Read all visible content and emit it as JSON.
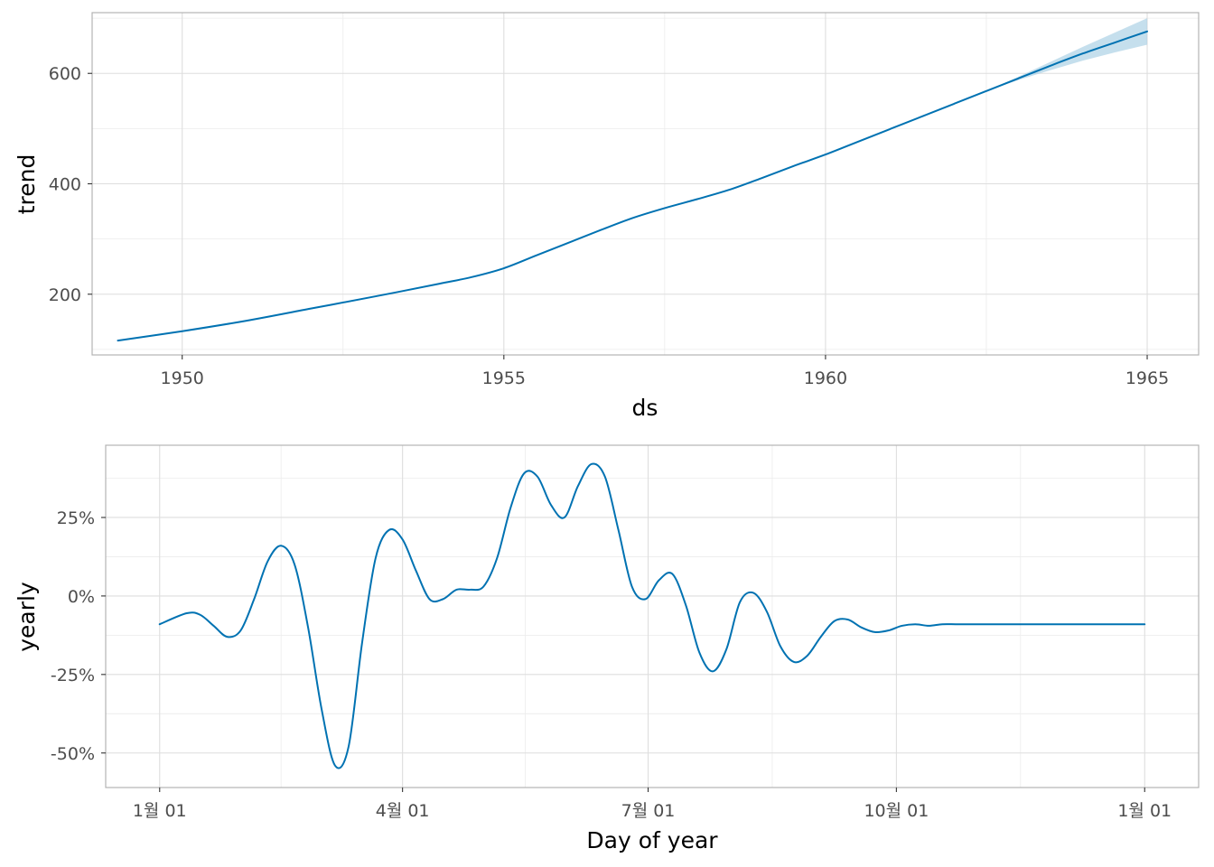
{
  "colors": {
    "line": "#0072B2",
    "band": "#A6CEE3"
  },
  "chart_data": [
    {
      "type": "line",
      "xlabel": "ds",
      "ylabel": "trend",
      "x_type": "year",
      "xlim": [
        1948.6,
        1965.8
      ],
      "ylim": [
        90,
        710
      ],
      "x_ticks": [
        1950,
        1955,
        1960,
        1965
      ],
      "x_tick_labels": [
        "1950",
        "1955",
        "1960",
        "1965"
      ],
      "y_ticks": [
        200,
        400,
        600
      ],
      "y_tick_labels": [
        "200",
        "400",
        "600"
      ],
      "grid": true,
      "series": [
        {
          "x": [
            1949.0,
            1950.0,
            1951.0,
            1952.0,
            1953.0,
            1954.0,
            1954.5,
            1955.0,
            1955.5,
            1956.0,
            1956.5,
            1957.0,
            1957.5,
            1958.0,
            1958.5,
            1959.0,
            1959.5,
            1960.0,
            1960.5,
            1961.0,
            1961.5,
            1962.0,
            1962.5,
            1963.0,
            1963.5,
            1964.0,
            1964.5,
            1965.0
          ],
          "y": [
            116,
            133,
            152,
            174,
            196,
            219,
            231,
            247,
            270,
            293,
            316,
            338,
            356,
            372,
            389,
            410,
            432,
            453,
            476,
            499,
            522,
            545,
            568,
            591,
            614,
            636,
            656,
            676
          ],
          "lower": [
            116,
            133,
            152,
            174,
            196,
            219,
            231,
            247,
            270,
            293,
            316,
            338,
            356,
            372,
            389,
            410,
            432,
            453,
            476,
            499,
            522,
            545,
            568,
            588,
            606,
            623,
            638,
            652
          ],
          "upper": [
            116,
            133,
            152,
            174,
            196,
            219,
            231,
            247,
            270,
            293,
            316,
            338,
            356,
            372,
            389,
            410,
            432,
            453,
            476,
            499,
            522,
            545,
            568,
            594,
            621,
            648,
            674,
            700
          ]
        }
      ]
    },
    {
      "type": "line",
      "xlabel": "Day of year",
      "ylabel": "yearly",
      "x_type": "day_of_year",
      "xlim": [
        -20,
        385
      ],
      "ylim": [
        -0.61,
        0.48
      ],
      "x_ticks": [
        0,
        90,
        181,
        273,
        365
      ],
      "x_tick_labels": [
        "1월 01",
        "4월 01",
        "7월 01",
        "10월 01",
        "1월 01"
      ],
      "y_ticks": [
        -0.5,
        -0.25,
        0,
        0.25
      ],
      "y_tick_labels": [
        "-50%",
        "-25%",
        "0%",
        "25%"
      ],
      "grid": true,
      "series": [
        {
          "x": [
            0,
            10,
            15,
            20,
            25,
            30,
            35,
            40,
            45,
            50,
            55,
            60,
            65,
            70,
            75,
            80,
            85,
            90,
            95,
            100,
            105,
            110,
            115,
            120,
            125,
            130,
            135,
            140,
            145,
            150,
            155,
            160,
            165,
            170,
            175,
            180,
            185,
            190,
            195,
            200,
            205,
            210,
            215,
            220,
            225,
            230,
            235,
            240,
            245,
            250,
            255,
            260,
            265,
            270,
            275,
            280,
            285,
            290,
            295,
            300,
            305,
            310,
            315,
            320,
            325,
            330,
            335,
            340,
            345,
            350,
            355,
            360,
            365
          ],
          "y": [
            -0.09,
            -0.055,
            -0.06,
            -0.095,
            -0.13,
            -0.11,
            -0.01,
            0.11,
            0.16,
            0.1,
            -0.1,
            -0.36,
            -0.54,
            -0.48,
            -0.15,
            0.12,
            0.21,
            0.18,
            0.08,
            -0.01,
            -0.01,
            0.02,
            0.02,
            0.03,
            0.12,
            0.28,
            0.39,
            0.38,
            0.29,
            0.25,
            0.35,
            0.42,
            0.38,
            0.21,
            0.03,
            -0.01,
            0.05,
            0.07,
            -0.03,
            -0.18,
            -0.24,
            -0.17,
            -0.02,
            0.01,
            -0.05,
            -0.16,
            -0.21,
            -0.19,
            -0.13,
            -0.08,
            -0.075,
            -0.1,
            -0.115,
            -0.11,
            -0.095,
            -0.09,
            -0.095,
            -0.09,
            -0.09,
            -0.09,
            -0.09,
            -0.09,
            -0.09,
            -0.09,
            -0.09,
            -0.09,
            -0.09,
            -0.09,
            -0.09,
            -0.09,
            -0.09,
            -0.09,
            -0.09
          ]
        }
      ]
    }
  ]
}
